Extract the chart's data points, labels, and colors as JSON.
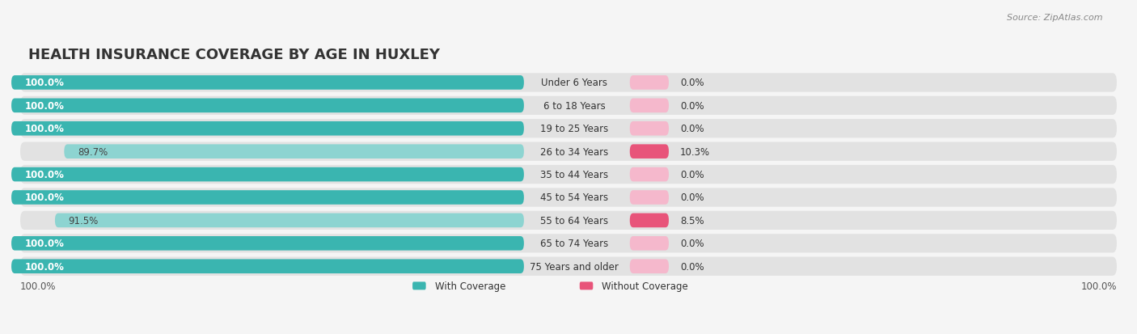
{
  "title": "HEALTH INSURANCE COVERAGE BY AGE IN HUXLEY",
  "source": "Source: ZipAtlas.com",
  "categories": [
    "Under 6 Years",
    "6 to 18 Years",
    "19 to 25 Years",
    "26 to 34 Years",
    "35 to 44 Years",
    "45 to 54 Years",
    "55 to 64 Years",
    "65 to 74 Years",
    "75 Years and older"
  ],
  "with_coverage": [
    100.0,
    100.0,
    100.0,
    89.7,
    100.0,
    100.0,
    91.5,
    100.0,
    100.0
  ],
  "without_coverage": [
    0.0,
    0.0,
    0.0,
    10.3,
    0.0,
    0.0,
    8.5,
    0.0,
    0.0
  ],
  "color_with_full": "#3ab5b0",
  "color_with_partial": "#8dd4d1",
  "color_without_zero": "#f5b8cc",
  "color_without_nonzero": "#e8547a",
  "row_bg": "#e2e2e2",
  "fig_bg": "#f5f5f5",
  "title_fontsize": 13,
  "source_fontsize": 8,
  "bar_label_fontsize": 8.5,
  "cat_label_fontsize": 8.5,
  "legend_fontsize": 8.5,
  "x_axis_label_left": "100.0%",
  "x_axis_label_right": "100.0%",
  "legend_with": "With Coverage",
  "legend_without": "Without Coverage"
}
